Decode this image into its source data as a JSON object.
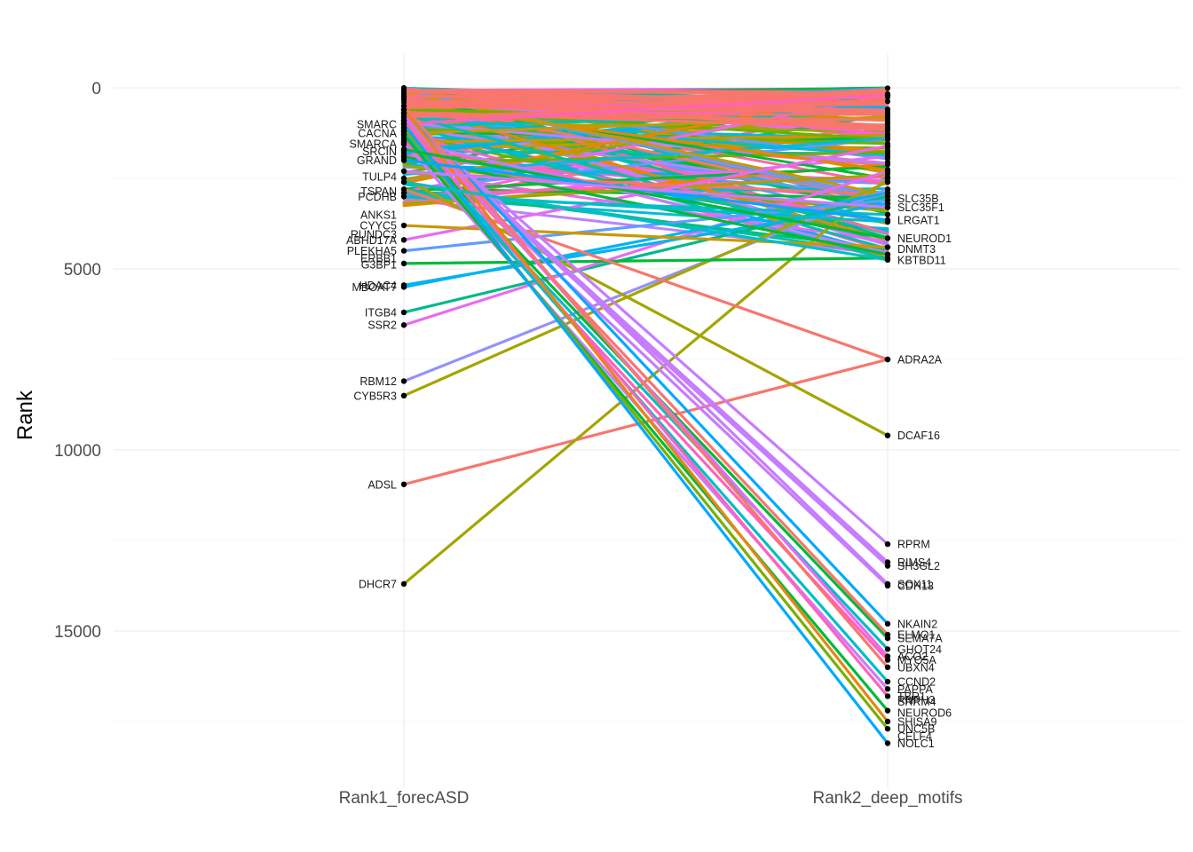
{
  "chart_data": {
    "type": "line",
    "ylabel": "Rank",
    "y_reversed": true,
    "ylim": [
      -200,
      18600
    ],
    "yticks": [
      0,
      5000,
      10000,
      15000
    ],
    "ytick_labels": [
      "0",
      "5000",
      "10000",
      "15000"
    ],
    "categories": [
      "Rank1_forecASD",
      "Rank2_deep_motifs"
    ],
    "grid": true,
    "legend": "none",
    "palette": [
      "#F8766D",
      "#E58700",
      "#C99800",
      "#A3A500",
      "#6BB100",
      "#00BA38",
      "#00BF7D",
      "#00C0AF",
      "#00BCD8",
      "#00B0F6",
      "#619CFF",
      "#B983FF",
      "#E76BF3",
      "#FD61D1",
      "#FF67A4"
    ],
    "series": [
      {
        "name": "ADSL",
        "values": [
          10950,
          7500
        ],
        "color": "#F8766D"
      },
      {
        "name": "DHCR7",
        "values": [
          13700,
          2500
        ],
        "color": "#A3A500"
      },
      {
        "name": "RBM12",
        "values": [
          8100,
          2800
        ],
        "color": "#9590FF"
      },
      {
        "name": "CYB5R3",
        "values": [
          8500,
          2600
        ],
        "color": "#A3A500"
      },
      {
        "name": "ITGB4",
        "values": [
          6200,
          3000
        ],
        "color": "#00B98B"
      },
      {
        "name": "SSR2",
        "values": [
          6550,
          2300
        ],
        "color": "#E76BF3"
      },
      {
        "name": "HDAC4",
        "values": [
          5450,
          3200
        ],
        "color": "#00B4EF"
      },
      {
        "name": "MBOAT7",
        "values": [
          5500,
          2900
        ],
        "color": "#00B4EF"
      },
      {
        "name": "G3BP1",
        "values": [
          4850,
          4700
        ],
        "color": "#00BA38"
      },
      {
        "name": "ABHD17A",
        "values": [
          4200,
          1600
        ],
        "color": "#E76BF3"
      },
      {
        "name": "PLEKHA5",
        "values": [
          4500,
          3100
        ],
        "color": "#619CFF"
      },
      {
        "name": "CYYC5",
        "values": [
          3800,
          4400
        ],
        "color": "#C99800"
      },
      {
        "name": "GRAND",
        "values": [
          1900,
          4600
        ],
        "color": "#00BA38"
      },
      {
        "name": "TSPAN",
        "values": [
          2900,
          3700
        ],
        "color": "#00BFC4"
      },
      {
        "name": "PCDHB",
        "values": [
          3000,
          3500
        ],
        "color": "#00BFC4"
      },
      {
        "name": "SMARCA",
        "values": [
          1000,
          200
        ],
        "color": "#FF62BC"
      },
      {
        "name": "ADRA2A",
        "values": [
          2800,
          7500
        ],
        "color": "#F8766D"
      },
      {
        "name": "DCAF16",
        "values": [
          2500,
          9600
        ],
        "color": "#A3A500"
      },
      {
        "name": "RPRM",
        "values": [
          800,
          12600
        ],
        "color": "#C77CFF"
      },
      {
        "name": "RIMS4",
        "values": [
          900,
          13100
        ],
        "color": "#C77CFF"
      },
      {
        "name": "SH3GL2",
        "values": [
          1000,
          13200
        ],
        "color": "#C77CFF"
      },
      {
        "name": "SOX11",
        "values": [
          700,
          13700
        ],
        "color": "#C77CFF"
      },
      {
        "name": "CDH13",
        "values": [
          1100,
          13750
        ],
        "color": "#C77CFF"
      },
      {
        "name": "NKAIN2",
        "values": [
          600,
          14800
        ],
        "color": "#00A9FF"
      },
      {
        "name": "SEMA7A",
        "values": [
          1200,
          15200
        ],
        "color": "#00BA38"
      },
      {
        "name": "ELMO1",
        "values": [
          900,
          15100
        ],
        "color": "#F8766D"
      },
      {
        "name": "GHOT24",
        "values": [
          1300,
          15500
        ],
        "color": "#00BFC4"
      },
      {
        "name": "ACO2",
        "values": [
          700,
          15700
        ],
        "color": "#E76BF3"
      },
      {
        "name": "MYO5A",
        "values": [
          1400,
          15800
        ],
        "color": "#FF62BC"
      },
      {
        "name": "UBXN4",
        "values": [
          500,
          16000
        ],
        "color": "#F8766D"
      },
      {
        "name": "CCND2",
        "values": [
          1200,
          16400
        ],
        "color": "#00BFC4"
      },
      {
        "name": "PAPPA",
        "values": [
          1500,
          16600
        ],
        "color": "#C77CFF"
      },
      {
        "name": "TBR1",
        "values": [
          900,
          16800
        ],
        "color": "#FF62BC"
      },
      {
        "name": "NEUROD6",
        "values": [
          1300,
          17200
        ],
        "color": "#00BA38"
      },
      {
        "name": "SHISA9",
        "values": [
          600,
          17500
        ],
        "color": "#E68613"
      },
      {
        "name": "UNC5B",
        "values": [
          1100,
          17700
        ],
        "color": "#7CAE00"
      },
      {
        "name": "NOLC1",
        "values": [
          1000,
          18100
        ],
        "color": "#00A9FF"
      },
      {
        "name": "NEUROD1",
        "values": [
          1700,
          4150
        ],
        "color": "#00BA38"
      },
      {
        "name": "LRGAT1",
        "values": [
          2000,
          3650
        ],
        "color": "#00A9FF"
      },
      {
        "name": "SLC35F1",
        "values": [
          2300,
          3300
        ],
        "color": "#C77CFF"
      },
      {
        "name": "KBTBD11",
        "values": [
          2600,
          4750
        ],
        "color": "#00BFC4"
      }
    ],
    "left_labels": [
      {
        "text": "ADSL",
        "rank": 10950
      },
      {
        "text": "DHCR7",
        "rank": 13700
      },
      {
        "text": "RBM12",
        "rank": 8100
      },
      {
        "text": "CYB5R3",
        "rank": 8500
      },
      {
        "text": "ITGB4",
        "rank": 6200
      },
      {
        "text": "SSR2",
        "rank": 6550
      },
      {
        "text": "HDAC4",
        "rank": 5450
      },
      {
        "text": "MBOAT7",
        "rank": 5500
      },
      {
        "text": "G3BP1",
        "rank": 4880
      },
      {
        "text": "ERBB1",
        "rank": 4700
      },
      {
        "text": "PLEKHA5",
        "rank": 4500
      },
      {
        "text": "ABHD17A",
        "rank": 4200
      },
      {
        "text": "RUNDC3",
        "rank": 4050
      },
      {
        "text": "CYYC5",
        "rank": 3800
      },
      {
        "text": "ANKS1",
        "rank": 3500
      },
      {
        "text": "PCDHB",
        "rank": 3000
      },
      {
        "text": "TSPAN",
        "rank": 2850
      },
      {
        "text": "TULP4",
        "rank": 2450
      },
      {
        "text": "GRAND",
        "rank": 2000
      },
      {
        "text": "SRCIN",
        "rank": 1750
      },
      {
        "text": "SMARCA",
        "rank": 1550
      },
      {
        "text": "CACNA",
        "rank": 1250
      },
      {
        "text": "SMARC",
        "rank": 1000
      }
    ],
    "right_labels": [
      {
        "text": "ADRA2A",
        "rank": 7500
      },
      {
        "text": "DCAF16",
        "rank": 9600
      },
      {
        "text": "RPRM",
        "rank": 12600
      },
      {
        "text": "RIMS4",
        "rank": 13100
      },
      {
        "text": "SH3GL2",
        "rank": 13200
      },
      {
        "text": "SOX11",
        "rank": 13700
      },
      {
        "text": "CDH13",
        "rank": 13750
      },
      {
        "text": "NKAIN2",
        "rank": 14800
      },
      {
        "text": "ELMO1",
        "rank": 15100
      },
      {
        "text": "SEMA7A",
        "rank": 15200
      },
      {
        "text": "GHOT24",
        "rank": 15500
      },
      {
        "text": "ACO2",
        "rank": 15700
      },
      {
        "text": "MYO5A",
        "rank": 15800
      },
      {
        "text": "UBXN4",
        "rank": 16000
      },
      {
        "text": "CCND2",
        "rank": 16400
      },
      {
        "text": "PAPPA",
        "rank": 16600
      },
      {
        "text": "TBR1",
        "rank": 16800
      },
      {
        "text": "SRRM4",
        "rank": 16950
      },
      {
        "text": "RNPH3",
        "rank": 16900
      },
      {
        "text": "NEUROD6",
        "rank": 17250
      },
      {
        "text": "SHISA9",
        "rank": 17500
      },
      {
        "text": "UNC5B",
        "rank": 17700
      },
      {
        "text": "CELF4",
        "rank": 17900
      },
      {
        "text": "NOLC1",
        "rank": 18100
      },
      {
        "text": "NEUROD1",
        "rank": 4150
      },
      {
        "text": "LRGAT1",
        "rank": 3650
      },
      {
        "text": "SLC35F1",
        "rank": 3300
      },
      {
        "text": "SLC35B",
        "rank": 3050
      },
      {
        "text": "KBTBD11",
        "rank": 4750
      },
      {
        "text": "DNMT3",
        "rank": 4450
      }
    ]
  }
}
